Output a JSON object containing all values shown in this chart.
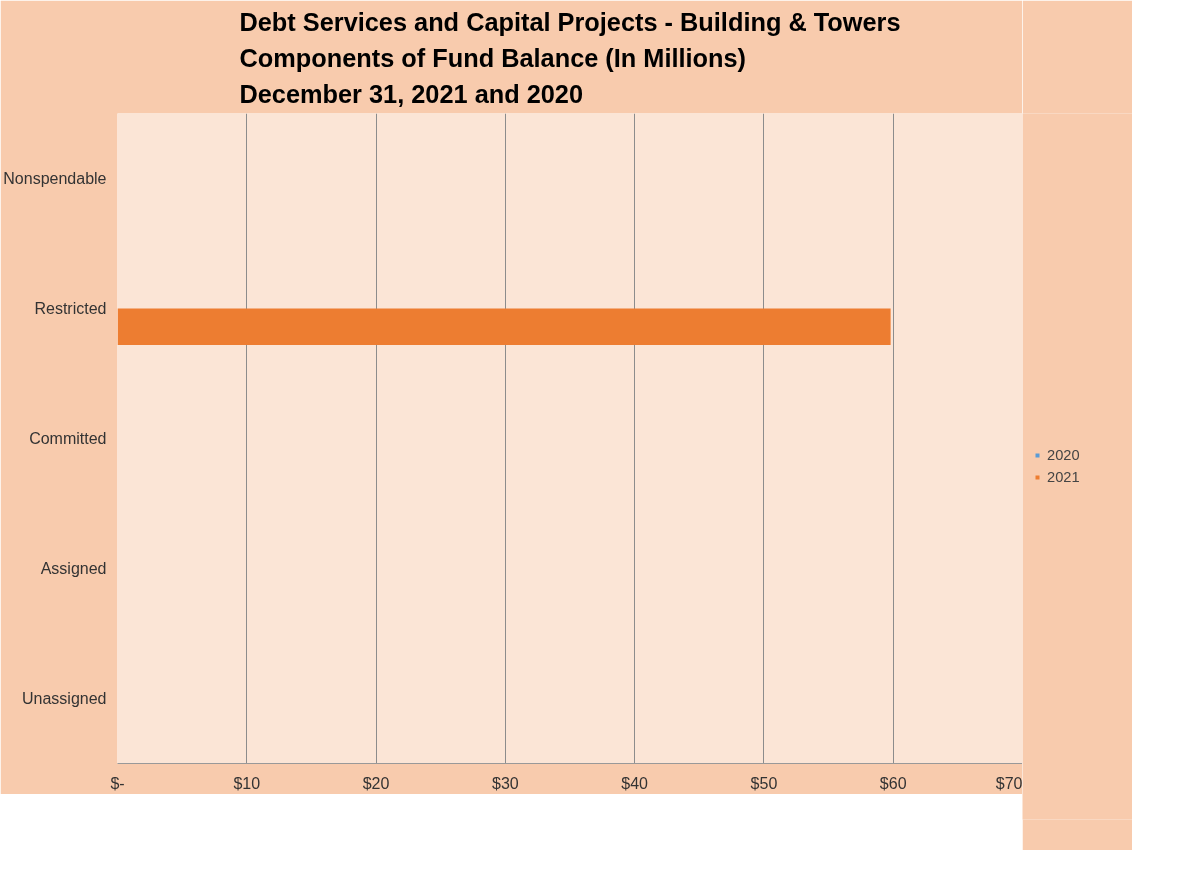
{
  "chart_data": {
    "type": "bar",
    "orientation": "horizontal",
    "title": "Debt Services and Capital Projects - Building & Towers\nComponents of Fund Balance (In Millions)\nDecember 31, 2021 and 2020",
    "categories": [
      "Nonspendable",
      "Restricted",
      "Committed",
      "Assigned",
      "Unassigned"
    ],
    "series": [
      {
        "name": "2020",
        "color": "#5b9bd5",
        "values": [
          0,
          0,
          0,
          0,
          0
        ]
      },
      {
        "name": "2021",
        "color": "#ed7d31",
        "values": [
          0,
          59.8,
          0,
          0,
          0
        ]
      }
    ],
    "xlim": [
      0,
      70
    ],
    "xticks": [
      {
        "value": 0,
        "label": "$-"
      },
      {
        "value": 10,
        "label": "$10"
      },
      {
        "value": 20,
        "label": "$20"
      },
      {
        "value": 30,
        "label": "$30"
      },
      {
        "value": 40,
        "label": "$40"
      },
      {
        "value": 50,
        "label": "$50"
      },
      {
        "value": 60,
        "label": "$60"
      },
      {
        "value": 70,
        "label": "$70"
      }
    ],
    "grid": "x",
    "legend": "right"
  }
}
